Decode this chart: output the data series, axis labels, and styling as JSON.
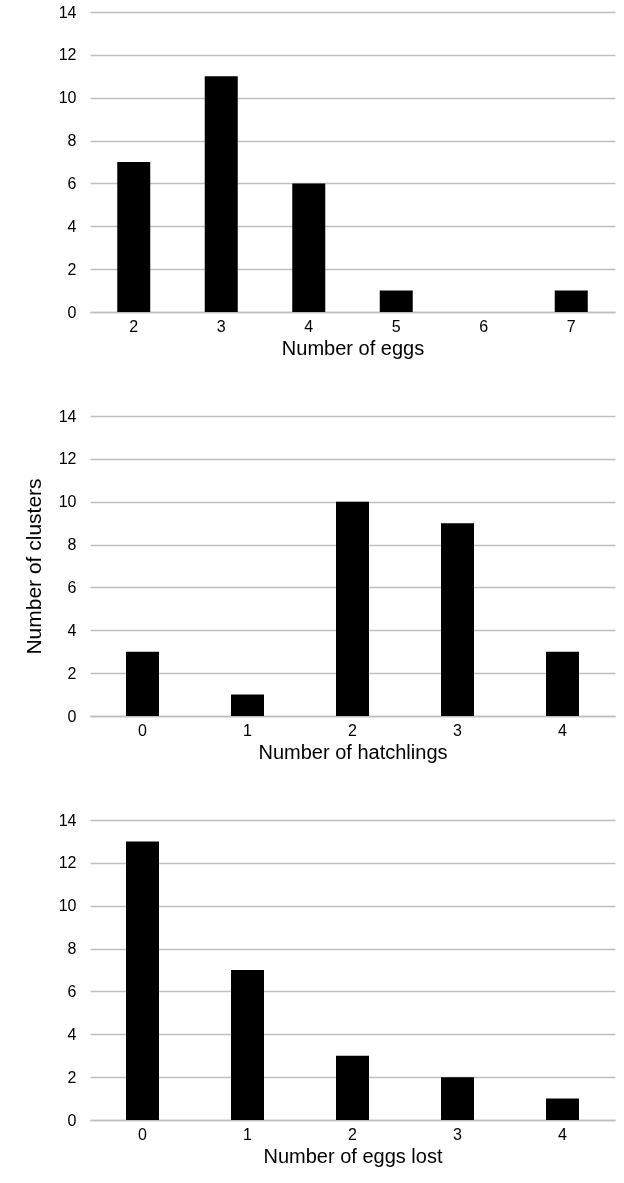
{
  "chart_data": [
    {
      "type": "bar",
      "xlabel": "Number of eggs",
      "categories": [
        "2",
        "3",
        "4",
        "5",
        "6",
        "7"
      ],
      "values": [
        7,
        11,
        6,
        1,
        0,
        1
      ],
      "color": "#000000",
      "ylim": [
        0,
        14
      ],
      "yticks": [
        0,
        2,
        4,
        6,
        8,
        10,
        12,
        14
      ],
      "grid": "y"
    },
    {
      "type": "bar",
      "xlabel": "Number of hatchlings",
      "ylabel": "Number of clusters",
      "categories": [
        "0",
        "1",
        "2",
        "3",
        "4"
      ],
      "values": [
        3,
        1,
        10,
        9,
        3
      ],
      "color": "#000000",
      "ylim": [
        0,
        14
      ],
      "yticks": [
        0,
        2,
        4,
        6,
        8,
        10,
        12,
        14
      ],
      "grid": "y"
    },
    {
      "type": "bar",
      "xlabel": "Number of eggs lost",
      "categories": [
        "0",
        "1",
        "2",
        "3",
        "4"
      ],
      "values": [
        13,
        7,
        3,
        2,
        1
      ],
      "color": "#000000",
      "ylim": [
        0,
        14
      ],
      "yticks": [
        0,
        2,
        4,
        6,
        8,
        10,
        12,
        14
      ],
      "grid": "y"
    }
  ]
}
